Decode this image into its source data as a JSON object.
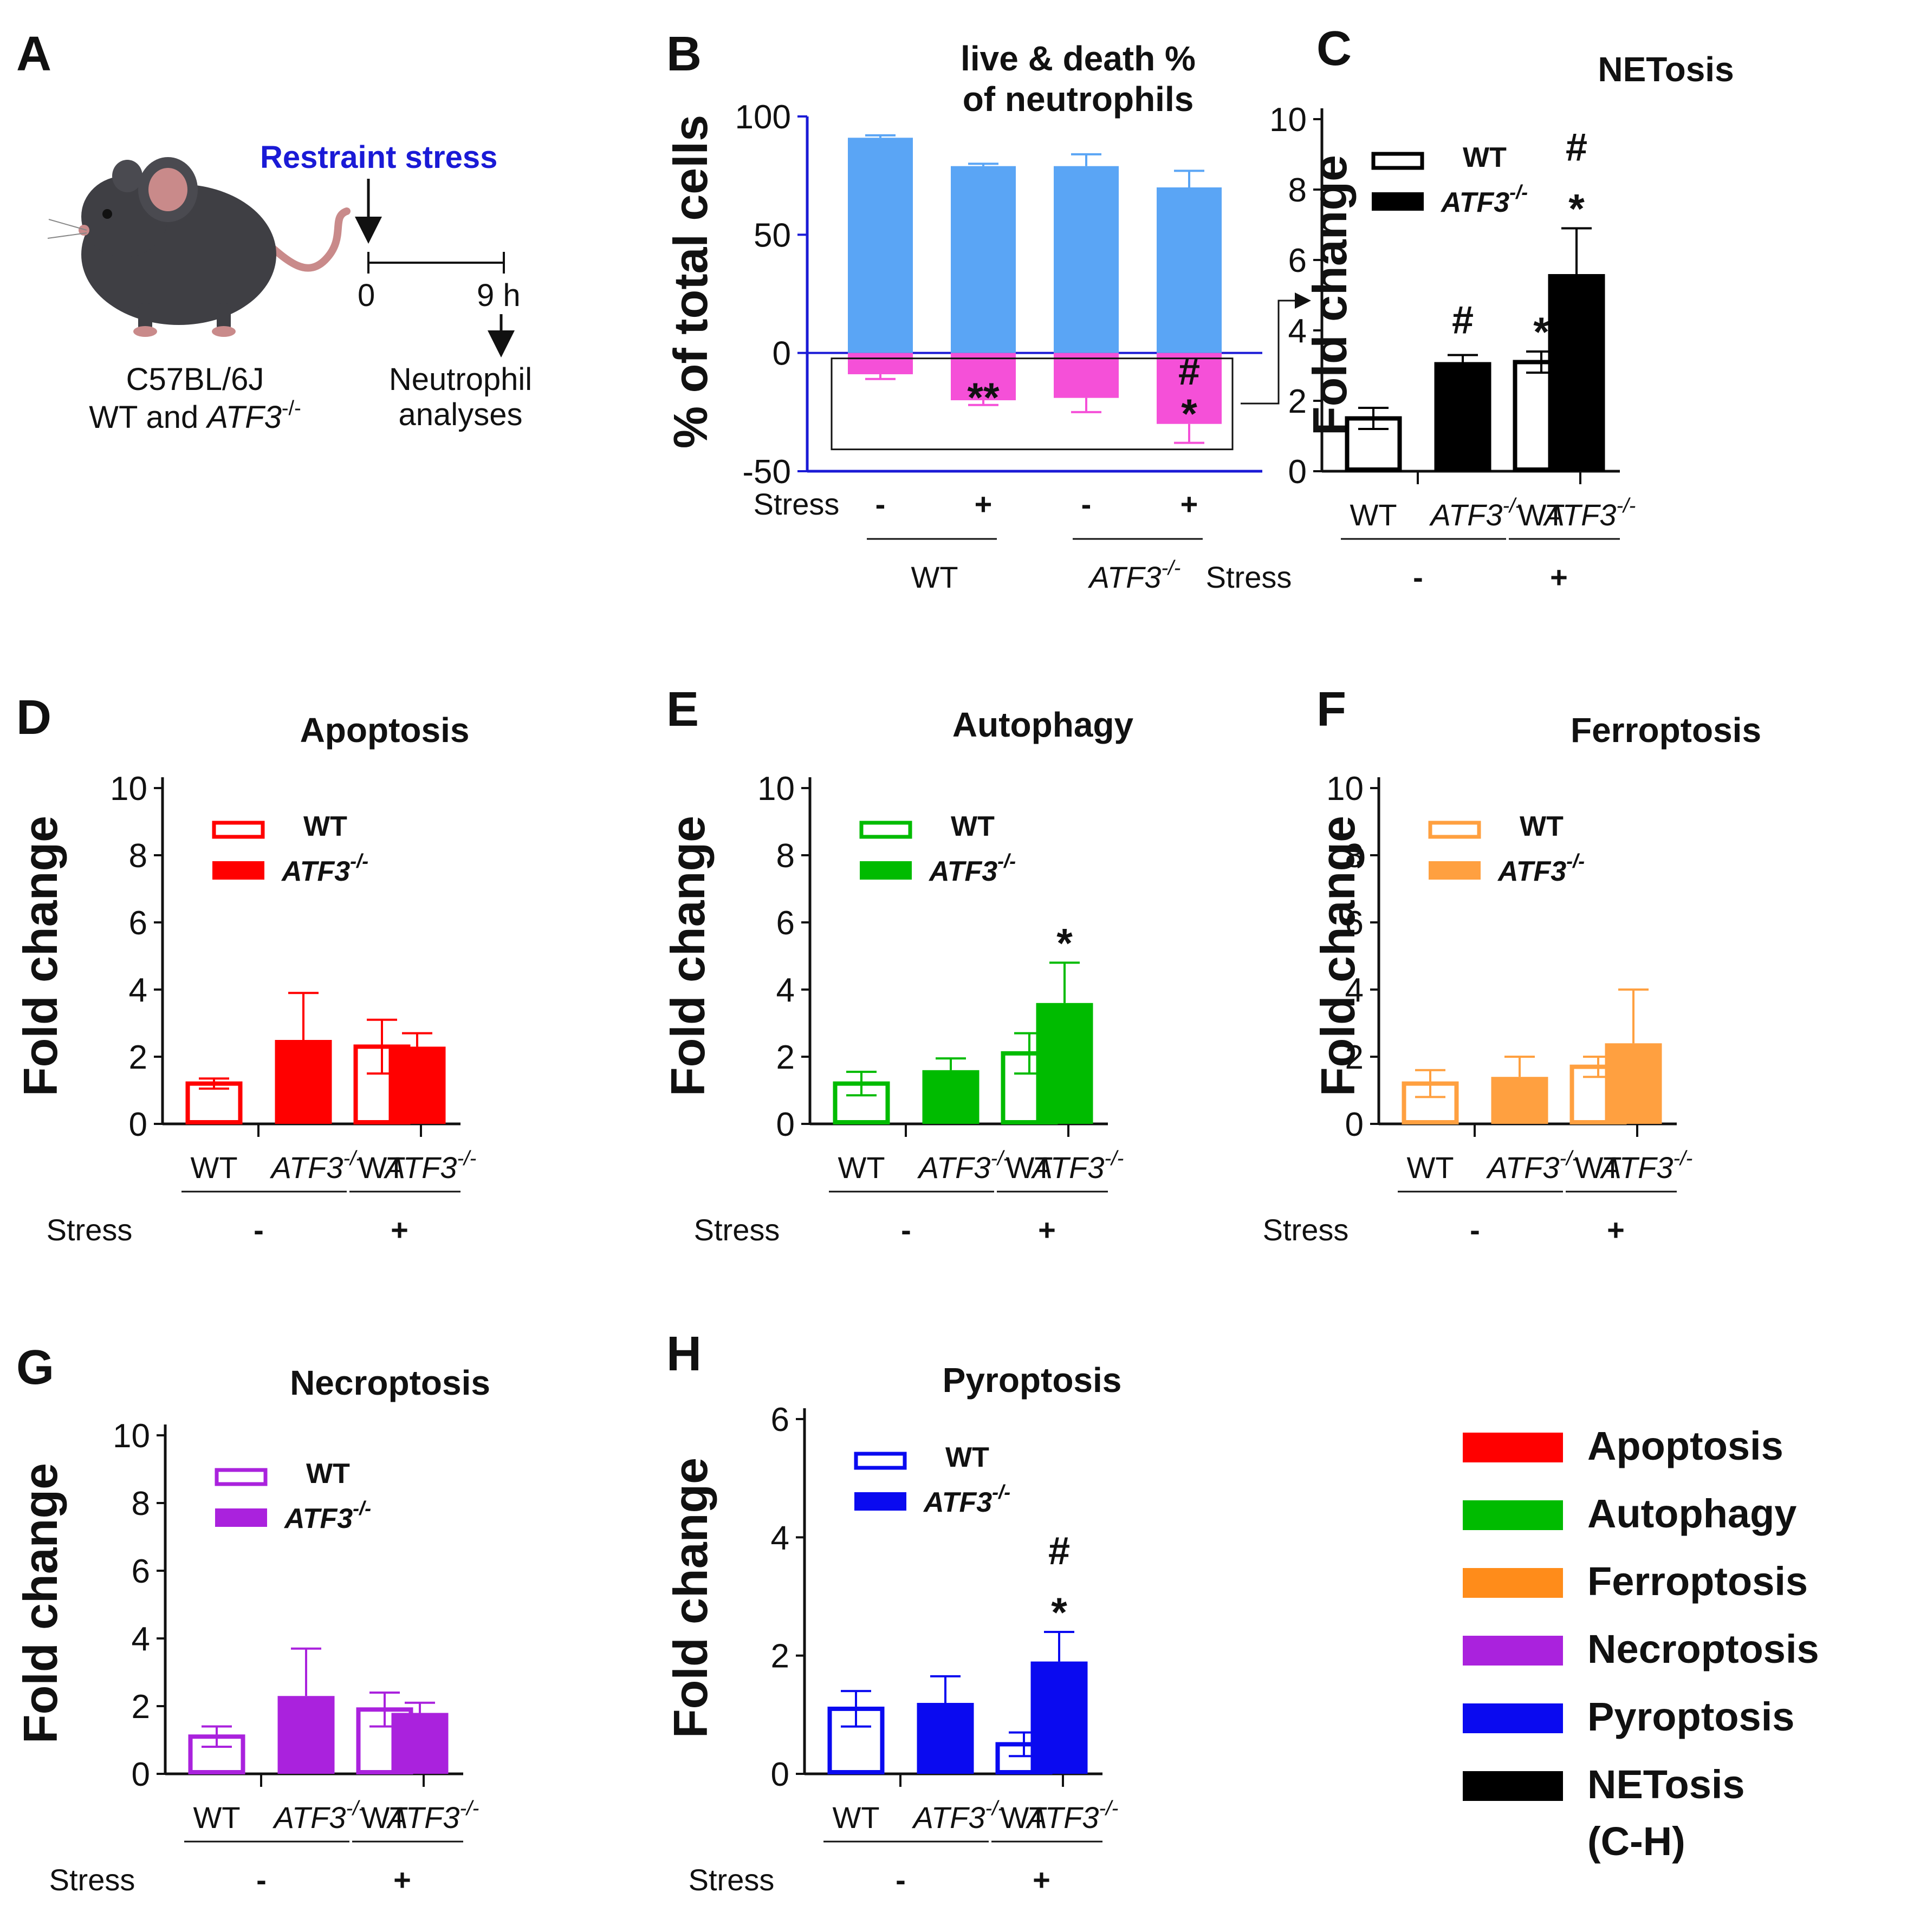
{
  "panel_a": {
    "label": "A",
    "stress_label": "Restraint stress",
    "t0": "0",
    "t9": "9 h",
    "outcome_line1": "Neutrophil",
    "outcome_line2": "analyses",
    "mouse_line1": "C57BL/6J",
    "mouse_line2": "WT and ",
    "mouse_line2_italic": "ATF3",
    "mouse_sup": "-/-",
    "stress_color": "#1a1ad6"
  },
  "common": {
    "stress": "Stress",
    "minus": "-",
    "plus": "+",
    "wt": "WT",
    "atf3": "ATF3",
    "sup": "-/-",
    "y_label": "Fold change"
  },
  "legend_main": {
    "items": [
      {
        "label": "Apoptosis",
        "color": "#ff0000"
      },
      {
        "label": "Autophagy",
        "color": "#00bb00"
      },
      {
        "label": "Ferroptosis",
        "color": "#ff8c1a"
      },
      {
        "label": "Necroptosis",
        "color": "#aa22dd"
      },
      {
        "label": "Pyroptosis",
        "color": "#0a0af0"
      },
      {
        "label": "NETosis",
        "color": "#000000"
      }
    ],
    "note": "(C-H)"
  },
  "chart_data": [
    {
      "panel": "B",
      "type": "bar",
      "title": [
        "live & death %",
        "of neutrophils"
      ],
      "ylabel": "% of total cells",
      "ylim": [
        -50,
        100
      ],
      "yticks": [
        "100",
        "50",
        "0",
        "-50"
      ],
      "yticks_v": [
        100,
        50,
        0,
        -50
      ],
      "categories": [
        "WT -",
        "WT +",
        "ATF3-/- -",
        "ATF3-/- +"
      ],
      "stress_signs": [
        "-",
        "+",
        "-",
        "+"
      ],
      "groups": [
        "WT",
        "ATF3"
      ],
      "series": [
        {
          "name": "live",
          "color": "#5aa5f5",
          "values": [
            91,
            79,
            79,
            70
          ],
          "errors": [
            1,
            1,
            5,
            7
          ]
        },
        {
          "name": "death",
          "color": "#f550d8",
          "values": [
            -9,
            -20,
            -19,
            -30
          ],
          "errors": [
            2,
            2,
            6,
            8
          ]
        }
      ],
      "annotations": [
        {
          "bar": 1,
          "text": "**"
        },
        {
          "bar": 3,
          "text": "#"
        },
        {
          "bar": 3,
          "text": "*"
        }
      ]
    },
    {
      "panel": "C",
      "title": "NETosis",
      "type": "bar",
      "color": "#000000",
      "ylim": [
        0,
        10
      ],
      "yticks": [
        "0",
        "2",
        "4",
        "6",
        "8",
        "10"
      ],
      "wt_label": "WT",
      "atf3_label": "ATF3",
      "stress_signs": [
        "-",
        "+"
      ],
      "values": [
        1.5,
        3.1,
        3.1,
        5.6
      ],
      "errors": [
        0.3,
        0.2,
        0.3,
        1.3
      ],
      "sig": [
        [],
        [
          "#"
        ],
        [
          "*"
        ],
        [
          "*",
          "#"
        ]
      ]
    },
    {
      "panel": "D",
      "title": "Apoptosis",
      "type": "bar",
      "color": "#ff0000",
      "ylim": [
        0,
        10
      ],
      "yticks": [
        "0",
        "2",
        "4",
        "6",
        "8",
        "10"
      ],
      "wt_label": "WT",
      "atf3_label": "ATF3",
      "stress_signs": [
        "-",
        "+"
      ],
      "values": [
        1.2,
        2.5,
        2.3,
        2.3
      ],
      "errors": [
        0.15,
        1.4,
        0.8,
        0.4
      ],
      "sig": [
        [],
        [],
        [],
        []
      ]
    },
    {
      "panel": "E",
      "title": "Autophagy",
      "type": "bar",
      "color": "#00bb00",
      "ylim": [
        0,
        10
      ],
      "yticks": [
        "0",
        "2",
        "4",
        "6",
        "8",
        "10"
      ],
      "wt_label": "WT",
      "atf3_label": "ATF3",
      "stress_signs": [
        "-",
        "+"
      ],
      "values": [
        1.2,
        1.6,
        2.1,
        3.6
      ],
      "errors": [
        0.35,
        0.35,
        0.6,
        1.2
      ],
      "sig": [
        [],
        [],
        [],
        [
          "*"
        ]
      ]
    },
    {
      "panel": "F",
      "title": "Ferroptosis",
      "type": "bar",
      "color": "#ffa040",
      "ylim": [
        0,
        10
      ],
      "yticks": [
        "0",
        "2",
        "4",
        "6",
        "8",
        "10"
      ],
      "wt_label": "WT",
      "atf3_label": "ATF3",
      "stress_signs": [
        "-",
        "+"
      ],
      "values": [
        1.2,
        1.4,
        1.7,
        2.4
      ],
      "errors": [
        0.4,
        0.6,
        0.3,
        1.6
      ],
      "sig": [
        [],
        [],
        [],
        []
      ]
    },
    {
      "panel": "G",
      "title": "Necroptosis",
      "type": "bar",
      "color": "#aa22dd",
      "ylim": [
        0,
        10
      ],
      "yticks": [
        "0",
        "2",
        "4",
        "6",
        "8",
        "10"
      ],
      "wt_label": "WT",
      "atf3_label": "ATF3",
      "stress_signs": [
        "-",
        "+"
      ],
      "values": [
        1.1,
        2.3,
        1.9,
        1.8
      ],
      "errors": [
        0.3,
        1.4,
        0.5,
        0.3
      ],
      "sig": [
        [],
        [],
        [],
        []
      ]
    },
    {
      "panel": "H",
      "title": "Pyroptosis",
      "type": "bar",
      "color": "#0a0af0",
      "ylim": [
        0,
        6
      ],
      "yticks": [
        "0",
        "2",
        "4",
        "6"
      ],
      "wt_label": "WT",
      "atf3_label": "ATF3",
      "stress_signs": [
        "-",
        "+"
      ],
      "values": [
        1.1,
        1.2,
        0.5,
        1.9
      ],
      "errors": [
        0.3,
        0.45,
        0.2,
        0.5
      ],
      "sig": [
        [],
        [],
        [],
        [
          "*",
          "#"
        ]
      ]
    }
  ]
}
